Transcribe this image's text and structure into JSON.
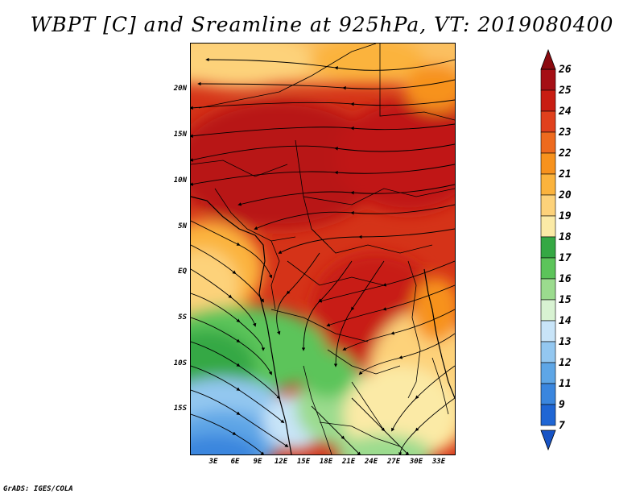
{
  "title": "WBPT [C] and Sreamline at 925hPa, VT: 2019080400",
  "credit": "GrADS: IGES/COLA",
  "lat_ticks": [
    "20N",
    "15N",
    "10N",
    "5N",
    "EQ",
    "5S",
    "10S",
    "15S"
  ],
  "lon_ticks": [
    "3E",
    "6E",
    "9E",
    "12E",
    "15E",
    "18E",
    "21E",
    "24E",
    "27E",
    "30E",
    "33E"
  ],
  "colorbar": {
    "labels": [
      "26",
      "25",
      "24",
      "23",
      "22",
      "21",
      "20",
      "19",
      "18",
      "17",
      "16",
      "15",
      "14",
      "13",
      "12",
      "11",
      "9",
      "7"
    ],
    "colors": [
      "#a50f15",
      "#c81d12",
      "#e0401d",
      "#ee6a1e",
      "#f7921d",
      "#fbb33d",
      "#fdd27a",
      "#fbeaa6",
      "#35a844",
      "#5cc45a",
      "#9bdb8e",
      "#d8f2d2",
      "#c8e4f8",
      "#93c7f0",
      "#5ea6e6",
      "#3a86de",
      "#1f66d4"
    ]
  }
}
